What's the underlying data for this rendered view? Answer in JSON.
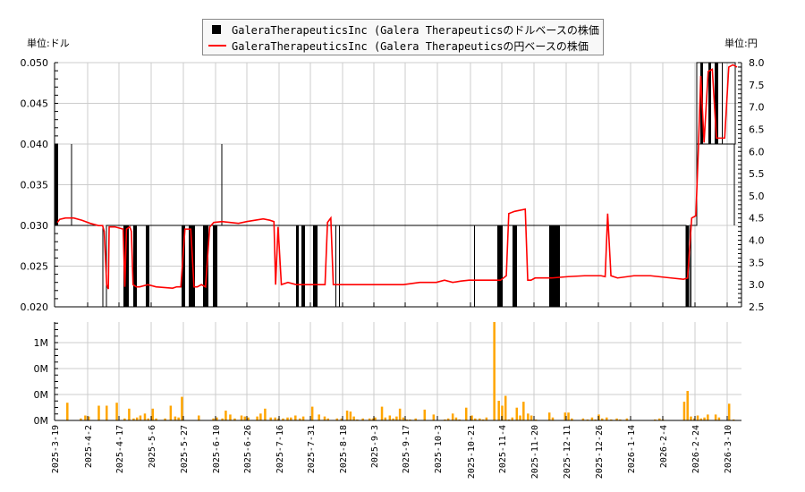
{
  "legend": {
    "usd_label": "GaleraTherapeuticsInc (Galera Therapeuticsのドルベースの株価",
    "jpy_label": "GaleraTherapeuticsInc (Galera Therapeuticsの円ベースの株価"
  },
  "units": {
    "left": "単位:ドル",
    "right": "単位:円"
  },
  "colors": {
    "usd": "#000000",
    "jpy": "#ff0000",
    "volume": "#ffa500",
    "grid": "#cccccc"
  },
  "chart_data": [
    {
      "type": "line",
      "title": "GaleraTherapeuticsInc price",
      "series": [
        {
          "name": "USD price",
          "axis": "left",
          "color": "#000000",
          "note": "black step/range line, mostly 0.030 with frequent drops to 0.020; 0.040 early; 0.040-0.050 in late Feb-Mar 2026"
        },
        {
          "name": "JPY price",
          "axis": "right",
          "color": "#ff0000"
        }
      ],
      "y_left": {
        "label": "単位:ドル",
        "ticks": [
          "0.020",
          "0.025",
          "0.030",
          "0.035",
          "0.040",
          "0.045",
          "0.050"
        ],
        "range": [
          0.02,
          0.05
        ]
      },
      "y_right": {
        "label": "単位:円",
        "ticks": [
          "2.5",
          "3.0",
          "3.5",
          "4.0",
          "4.5",
          "5.0",
          "5.5",
          "6.0",
          "6.5",
          "7.0",
          "7.5",
          "8.0"
        ],
        "range": [
          2.5,
          8.0
        ]
      },
      "x_ticks": [
        "2025-3-19",
        "2025-4-2",
        "2025-4-17",
        "2025-5-6",
        "2025-5-27",
        "2025-6-10",
        "2025-6-26",
        "2025-7-16",
        "2025-7-31",
        "2025-8-18",
        "2025-9-3",
        "2025-9-17",
        "2025-10-3",
        "2025-10-21",
        "2025-11-4",
        "2025-11-20",
        "2025-12-11",
        "2025-12-26",
        "2026-1-14",
        "2026-2-4",
        "2026-2-24",
        "2026-3-10"
      ],
      "jpy_points": [
        [
          0,
          4.4
        ],
        [
          3,
          4.47
        ],
        [
          10,
          4.5
        ],
        [
          20,
          4.5
        ],
        [
          30,
          4.45
        ],
        [
          40,
          4.38
        ],
        [
          50,
          4.33
        ],
        [
          55,
          4.33
        ],
        [
          57,
          4.2
        ],
        [
          60,
          3.0
        ],
        [
          62,
          2.9
        ],
        [
          63,
          4.3
        ],
        [
          70,
          4.3
        ],
        [
          80,
          4.25
        ],
        [
          82,
          2.95
        ],
        [
          84,
          4.25
        ],
        [
          88,
          4.3
        ],
        [
          90,
          4.2
        ],
        [
          92,
          3.0
        ],
        [
          96,
          2.95
        ],
        [
          100,
          2.95
        ],
        [
          110,
          3.0
        ],
        [
          120,
          2.95
        ],
        [
          140,
          2.92
        ],
        [
          145,
          2.95
        ],
        [
          150,
          2.95
        ],
        [
          155,
          4.25
        ],
        [
          162,
          4.25
        ],
        [
          166,
          2.95
        ],
        [
          170,
          2.95
        ],
        [
          175,
          3.0
        ],
        [
          180,
          2.95
        ],
        [
          185,
          4.3
        ],
        [
          190,
          4.4
        ],
        [
          200,
          4.42
        ],
        [
          210,
          4.4
        ],
        [
          220,
          4.38
        ],
        [
          230,
          4.42
        ],
        [
          240,
          4.45
        ],
        [
          250,
          4.48
        ],
        [
          258,
          4.45
        ],
        [
          263,
          4.42
        ],
        [
          265,
          3.0
        ],
        [
          268,
          4.3
        ],
        [
          272,
          3.0
        ],
        [
          280,
          3.05
        ],
        [
          290,
          3.0
        ],
        [
          310,
          3.0
        ],
        [
          320,
          3.0
        ],
        [
          325,
          3.0
        ],
        [
          328,
          4.4
        ],
        [
          332,
          4.5
        ],
        [
          335,
          3.0
        ],
        [
          350,
          3.0
        ],
        [
          380,
          3.0
        ],
        [
          400,
          3.0
        ],
        [
          420,
          3.0
        ],
        [
          440,
          3.05
        ],
        [
          460,
          3.05
        ],
        [
          470,
          3.1
        ],
        [
          480,
          3.05
        ],
        [
          490,
          3.08
        ],
        [
          500,
          3.1
        ],
        [
          530,
          3.1
        ],
        [
          538,
          3.1
        ],
        [
          545,
          3.2
        ],
        [
          548,
          4.6
        ],
        [
          555,
          4.65
        ],
        [
          568,
          4.7
        ],
        [
          571,
          3.1
        ],
        [
          575,
          3.1
        ],
        [
          580,
          3.15
        ],
        [
          600,
          3.15
        ],
        [
          620,
          3.18
        ],
        [
          640,
          3.2
        ],
        [
          660,
          3.2
        ],
        [
          665,
          3.18
        ],
        [
          668,
          4.6
        ],
        [
          672,
          3.2
        ],
        [
          680,
          3.15
        ],
        [
          700,
          3.2
        ],
        [
          710,
          3.2
        ],
        [
          720,
          3.2
        ],
        [
          745,
          3.15
        ],
        [
          760,
          3.12
        ],
        [
          765,
          3.15
        ],
        [
          770,
          4.5
        ],
        [
          775,
          4.55
        ],
        [
          778,
          6.0
        ],
        [
          781,
          7.7
        ],
        [
          785,
          6.2
        ],
        [
          790,
          7.8
        ],
        [
          795,
          7.85
        ],
        [
          800,
          6.3
        ],
        [
          805,
          6.3
        ],
        [
          810,
          6.3
        ],
        [
          815,
          7.9
        ],
        [
          820,
          7.95
        ],
        [
          825,
          7.9
        ]
      ],
      "usd_segments": "step line around 0.030 with vertical bars to 0.020"
    },
    {
      "type": "bar",
      "title": "Volume",
      "y_ticks": [
        "0M",
        "0M",
        "0M",
        "1M"
      ],
      "x_ticks": [
        "2025-3-19",
        "2025-4-2",
        "2025-4-17",
        "2025-5-6",
        "2025-5-27",
        "2025-6-10",
        "2025-6-26",
        "2025-7-16",
        "2025-7-31",
        "2025-8-18",
        "2025-9-3",
        "2025-9-17",
        "2025-10-3",
        "2025-10-21",
        "2025-11-4",
        "2025-11-20",
        "2025-12-11",
        "2025-12-26",
        "2026-1-14",
        "2026-2-4",
        "2026-2-24",
        "2026-3-10"
      ],
      "bars": [
        [
          8,
          18
        ],
        [
          20,
          2
        ],
        [
          24,
          5
        ],
        [
          27,
          4
        ],
        [
          36,
          15
        ],
        [
          43,
          15
        ],
        [
          52,
          18
        ],
        [
          59,
          2
        ],
        [
          63,
          12
        ],
        [
          67,
          2
        ],
        [
          70,
          3
        ],
        [
          73,
          5
        ],
        [
          77,
          7
        ],
        [
          80,
          2
        ],
        [
          84,
          12
        ],
        [
          87,
          2
        ],
        [
          95,
          2
        ],
        [
          100,
          15
        ],
        [
          104,
          4
        ],
        [
          107,
          3
        ],
        [
          110,
          24
        ],
        [
          125,
          5
        ],
        [
          138,
          2
        ],
        [
          141,
          3
        ],
        [
          146,
          2
        ],
        [
          149,
          10
        ],
        [
          153,
          6
        ],
        [
          157,
          2
        ],
        [
          163,
          5
        ],
        [
          166,
          4
        ],
        [
          169,
          3
        ],
        [
          177,
          4
        ],
        [
          180,
          7
        ],
        [
          184,
          12
        ],
        [
          189,
          3
        ],
        [
          193,
          3
        ],
        [
          196,
          2
        ],
        [
          200,
          2
        ],
        [
          204,
          3
        ],
        [
          207,
          3
        ],
        [
          211,
          5
        ],
        [
          215,
          2
        ],
        [
          218,
          4
        ],
        [
          226,
          14
        ],
        [
          232,
          6
        ],
        [
          237,
          4
        ],
        [
          240,
          2
        ],
        [
          248,
          2
        ],
        [
          252,
          2
        ],
        [
          257,
          10
        ],
        [
          260,
          9
        ],
        [
          263,
          4
        ],
        [
          266,
          1
        ],
        [
          271,
          2
        ],
        [
          277,
          2
        ],
        [
          280,
          2
        ],
        [
          282,
          3
        ],
        [
          288,
          14
        ],
        [
          291,
          3
        ],
        [
          295,
          5
        ],
        [
          298,
          2
        ],
        [
          301,
          4
        ],
        [
          304,
          12
        ],
        [
          307,
          3
        ],
        [
          310,
          1
        ],
        [
          313,
          1
        ],
        [
          318,
          2
        ],
        [
          326,
          11
        ],
        [
          334,
          6
        ],
        [
          344,
          1
        ],
        [
          347,
          2
        ],
        [
          351,
          7
        ],
        [
          354,
          3
        ],
        [
          357,
          1
        ],
        [
          363,
          13
        ],
        [
          368,
          5
        ],
        [
          371,
          2
        ],
        [
          375,
          2
        ],
        [
          378,
          1
        ],
        [
          381,
          3
        ],
        [
          388,
          100
        ],
        [
          392,
          20
        ],
        [
          395,
          15
        ],
        [
          398,
          25
        ],
        [
          401,
          1
        ],
        [
          404,
          3
        ],
        [
          408,
          13
        ],
        [
          411,
          5
        ],
        [
          414,
          19
        ],
        [
          418,
          7
        ],
        [
          421,
          5
        ],
        [
          425,
          1
        ],
        [
          437,
          8
        ],
        [
          440,
          3
        ],
        [
          451,
          8
        ],
        [
          454,
          8
        ],
        [
          457,
          2
        ],
        [
          467,
          2
        ],
        [
          471,
          1
        ],
        [
          475,
          3
        ],
        [
          478,
          1
        ],
        [
          481,
          6
        ],
        [
          484,
          2
        ],
        [
          488,
          3
        ],
        [
          492,
          1
        ],
        [
          497,
          2
        ],
        [
          500,
          1
        ],
        [
          506,
          2
        ],
        [
          531,
          1
        ],
        [
          535,
          2
        ],
        [
          538,
          1
        ],
        [
          557,
          19
        ],
        [
          560,
          30
        ],
        [
          563,
          4
        ],
        [
          566,
          2
        ],
        [
          569,
          5
        ],
        [
          572,
          2
        ],
        [
          575,
          3
        ],
        [
          578,
          6
        ],
        [
          585,
          6
        ],
        [
          588,
          3
        ],
        [
          597,
          17
        ],
        [
          601,
          1
        ]
      ]
    }
  ]
}
